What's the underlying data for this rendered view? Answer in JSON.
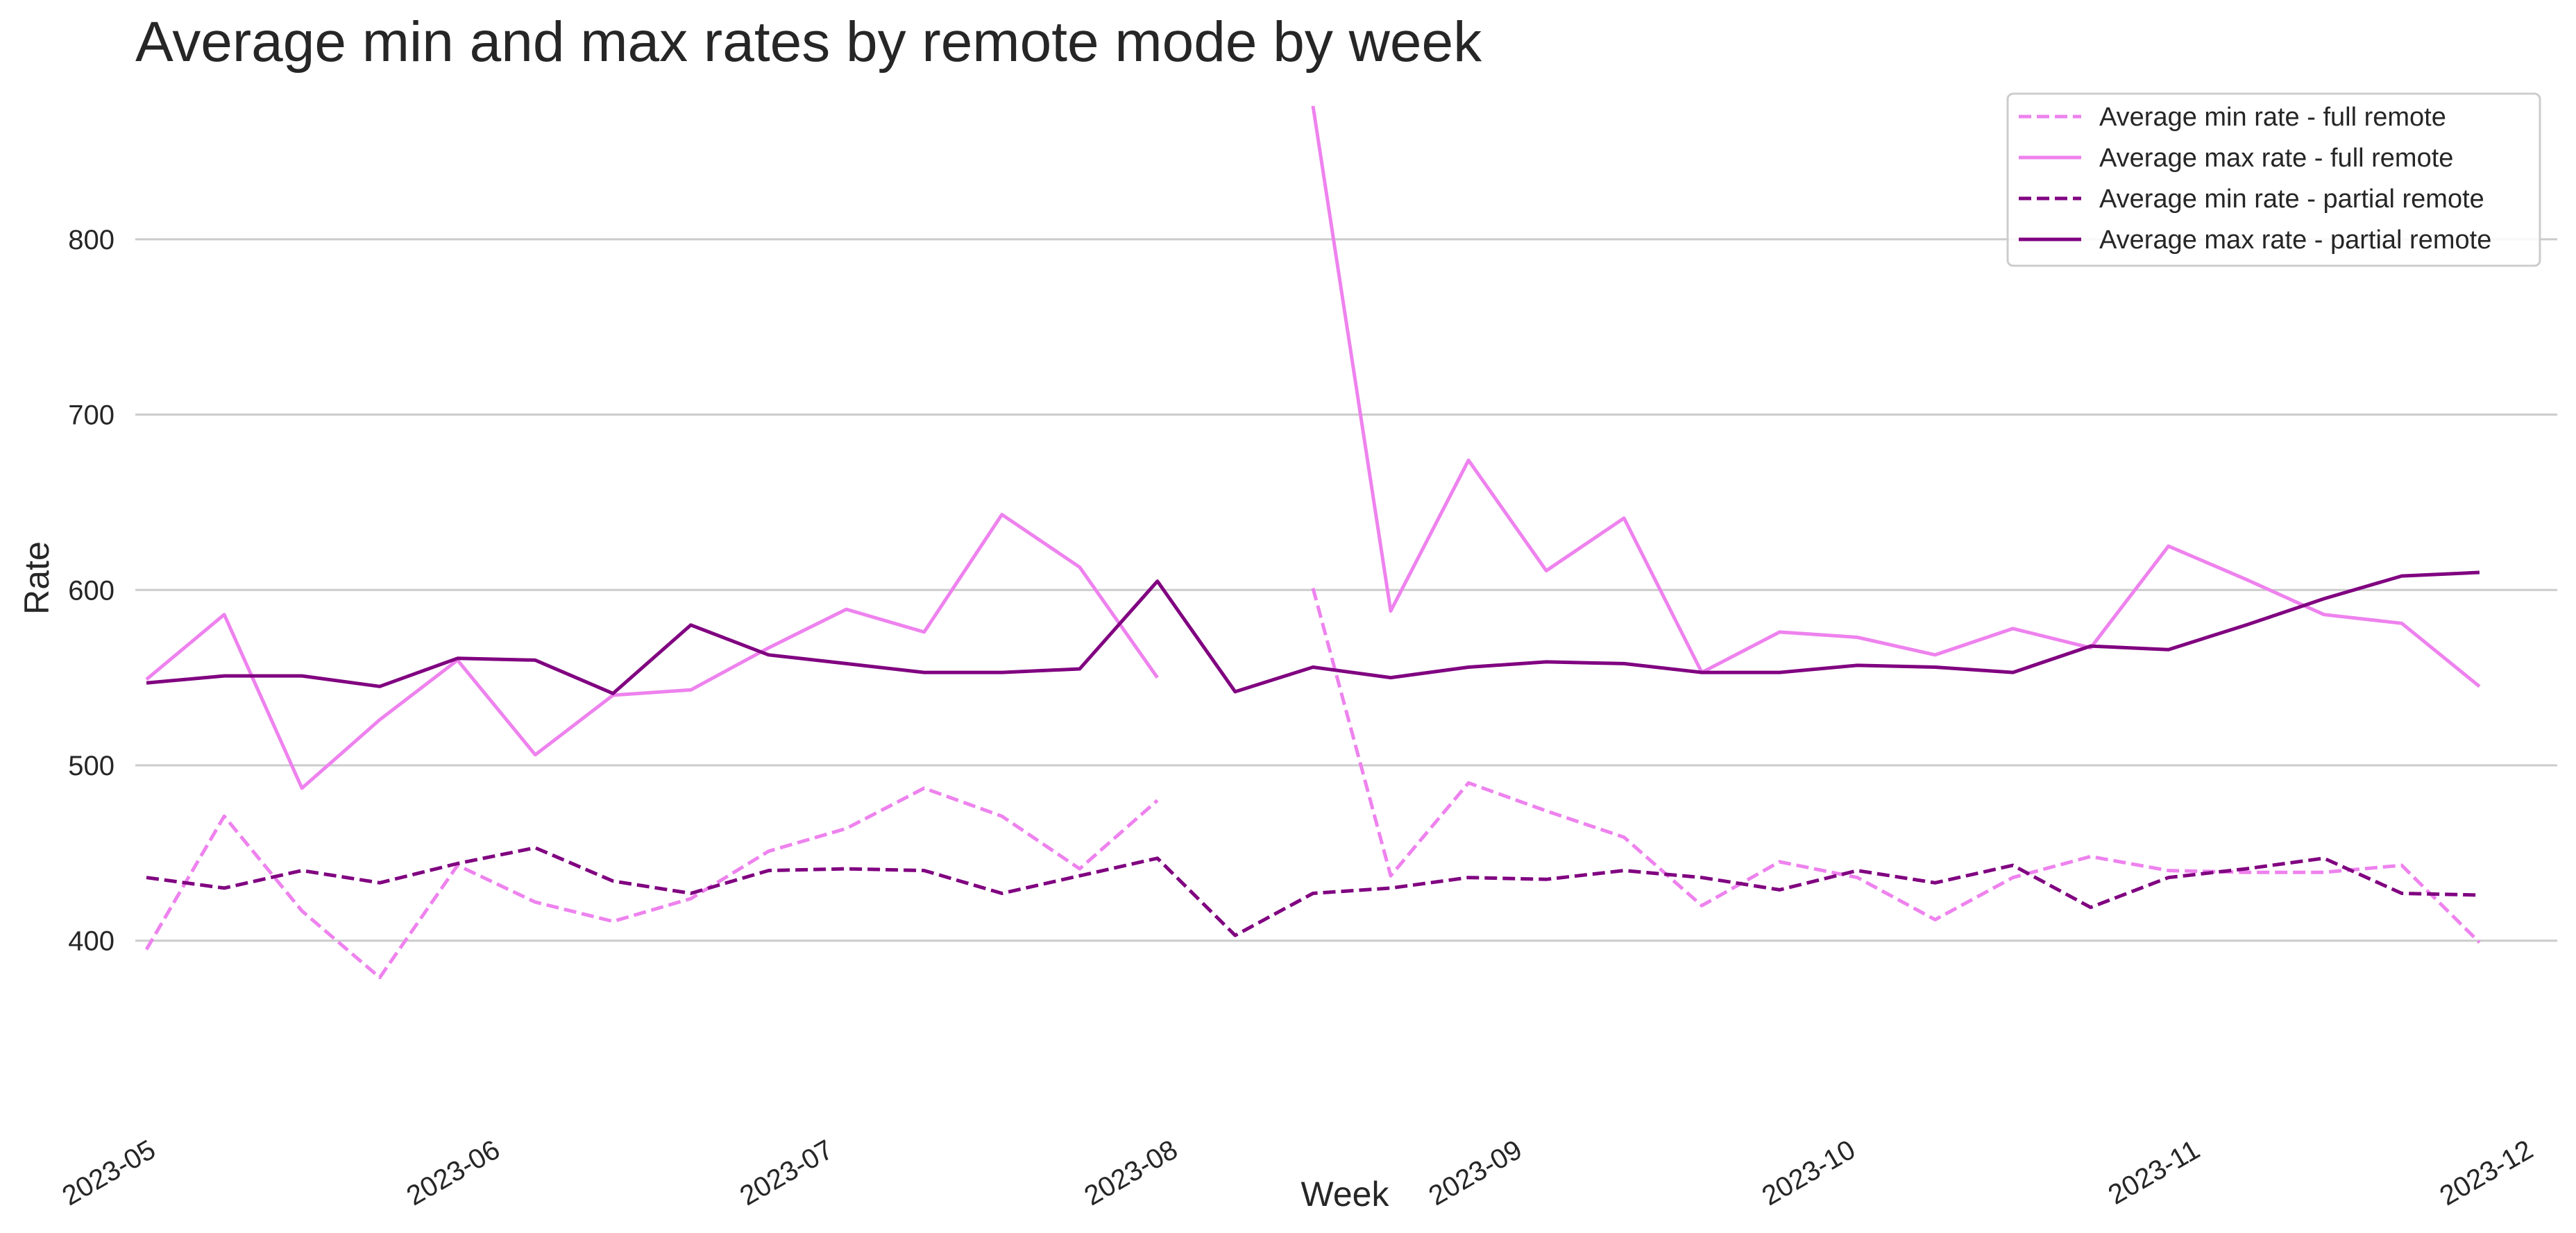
{
  "chart_data": {
    "type": "line",
    "title": "Average min and max rates by remote mode by week",
    "xlabel": "Week",
    "ylabel": "Rate",
    "x_ticks": [
      "2023-05",
      "2023-06",
      "2023-07",
      "2023-08",
      "2023-09",
      "2023-10",
      "2023-11",
      "2023-12"
    ],
    "y_ticks": [
      "400",
      "500",
      "600",
      "700",
      "800"
    ],
    "ylim": [
      335,
      885
    ],
    "xlim": [
      "2023-04-29",
      "2023-12-03"
    ],
    "grid": "horizontal",
    "legend_position": "top-right",
    "x": [
      "2023-04-30",
      "2023-05-07",
      "2023-05-14",
      "2023-05-21",
      "2023-05-28",
      "2023-06-04",
      "2023-06-11",
      "2023-06-18",
      "2023-06-25",
      "2023-07-02",
      "2023-07-09",
      "2023-07-16",
      "2023-07-23",
      "2023-07-30",
      "2023-08-06",
      "2023-08-13",
      "2023-08-20",
      "2023-08-27",
      "2023-09-03",
      "2023-09-10",
      "2023-09-17",
      "2023-09-24",
      "2023-10-01",
      "2023-10-08",
      "2023-10-15",
      "2023-10-22",
      "2023-10-29",
      "2023-11-05",
      "2023-11-12",
      "2023-11-19",
      "2023-11-26"
    ],
    "series": [
      {
        "name": "Average min rate - full remote",
        "color": "#ee82ee",
        "dash": true,
        "values": [
          395,
          471,
          417,
          379,
          443,
          422,
          411,
          424,
          451,
          464,
          487,
          471,
          441,
          480,
          null,
          601,
          437,
          490,
          474,
          459,
          420,
          445,
          436,
          412,
          436,
          448,
          440,
          439,
          439,
          443,
          399
        ]
      },
      {
        "name": "Average max rate - full remote",
        "color": "#ee82ee",
        "dash": false,
        "values": [
          549,
          586,
          487,
          526,
          560,
          506,
          540,
          543,
          567,
          589,
          576,
          643,
          613,
          550,
          null,
          876,
          588,
          674,
          611,
          641,
          553,
          576,
          573,
          563,
          578,
          567,
          625,
          606,
          586,
          581,
          545
        ]
      },
      {
        "name": "Average min rate - partial remote",
        "color": "#800080",
        "dash": true,
        "values": [
          436,
          430,
          440,
          433,
          444,
          453,
          434,
          427,
          440,
          441,
          440,
          427,
          437,
          447,
          403,
          427,
          430,
          436,
          435,
          440,
          436,
          429,
          440,
          433,
          443,
          419,
          436,
          441,
          447,
          427,
          426
        ]
      },
      {
        "name": "Average max rate - partial remote",
        "color": "#800080",
        "dash": false,
        "values": [
          547,
          551,
          551,
          545,
          561,
          560,
          541,
          580,
          563,
          558,
          553,
          553,
          555,
          605,
          542,
          556,
          550,
          556,
          559,
          558,
          553,
          553,
          557,
          556,
          553,
          568,
          566,
          580,
          595,
          608,
          610
        ]
      }
    ]
  }
}
